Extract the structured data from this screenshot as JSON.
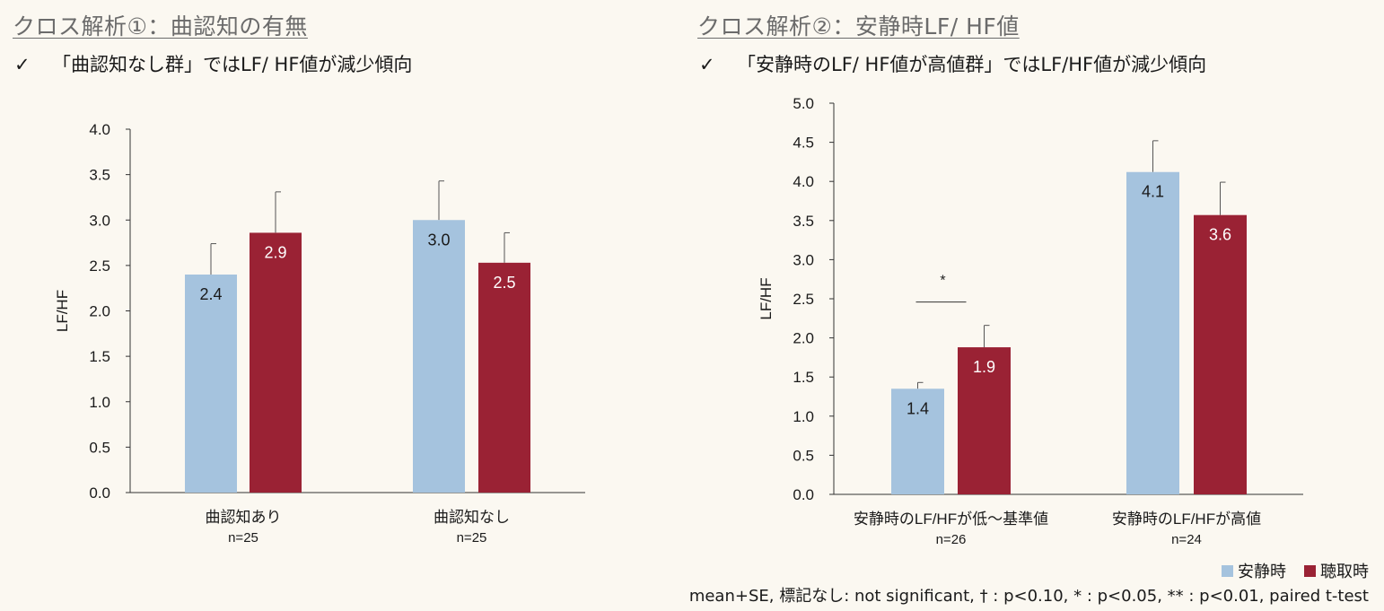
{
  "colors": {
    "rest": "#a5c3de",
    "listening": "#9a2234",
    "title_gray": "#6b6b6b",
    "background": "#fbf8f1"
  },
  "left": {
    "title": "クロス解析①：曲認知の有無",
    "check": "✓",
    "bullet": "「曲認知なし群」ではLF/ HF値が減少傾向"
  },
  "right": {
    "title": "クロス解析②：安静時LF/ HF値",
    "check": "✓",
    "bullet": "「安静時のLF/ HF値が高値群」ではLF/HF値が減少傾向"
  },
  "legend": {
    "rest_label": "安静時",
    "listening_label": "聴取時"
  },
  "footnote": "mean+SE, 標記なし: not significant, † : p<0.10, * : p<0.05, ** : p<0.01, paired t-test",
  "chart_data": [
    {
      "type": "bar",
      "ylabel": "LF/HF",
      "ylim": [
        0,
        4.0
      ],
      "yticks": [
        "0.0",
        "0.5",
        "1.0",
        "1.5",
        "2.0",
        "2.5",
        "3.0",
        "3.5",
        "4.0"
      ],
      "categories": [
        "曲認知あり",
        "曲認知なし"
      ],
      "n_labels": [
        "n=25",
        "n=25"
      ],
      "series": [
        {
          "name": "安静時",
          "values": [
            2.4,
            3.0
          ],
          "errors": [
            0.34,
            0.43
          ],
          "labels": [
            "2.4",
            "3.0"
          ]
        },
        {
          "name": "聴取時",
          "values": [
            2.86,
            2.53
          ],
          "errors": [
            0.45,
            0.33
          ],
          "labels": [
            "2.9",
            "2.5"
          ]
        }
      ],
      "significance": []
    },
    {
      "type": "bar",
      "ylabel": "LF/HF",
      "ylim": [
        0,
        5.0
      ],
      "yticks": [
        "0.0",
        "0.5",
        "1.0",
        "1.5",
        "2.0",
        "2.5",
        "3.0",
        "3.5",
        "4.0",
        "4.5",
        "5.0"
      ],
      "categories": [
        "安静時のLF/HFが低～基準値",
        "安静時のLF/HFが高値"
      ],
      "n_labels": [
        "n=26",
        "n=24"
      ],
      "series": [
        {
          "name": "安静時",
          "values": [
            1.35,
            4.12
          ],
          "errors": [
            0.08,
            0.4
          ],
          "labels": [
            "1.4",
            "4.1"
          ]
        },
        {
          "name": "聴取時",
          "values": [
            1.88,
            3.57
          ],
          "errors": [
            0.28,
            0.42
          ],
          "labels": [
            "1.9",
            "3.6"
          ]
        }
      ],
      "significance": [
        {
          "category": 0,
          "marker": "*"
        }
      ]
    }
  ]
}
